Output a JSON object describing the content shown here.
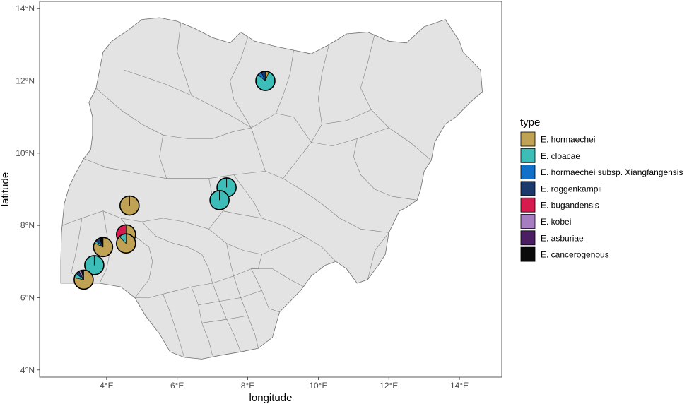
{
  "chart_data": {
    "type": "map",
    "xlabel": "longitude",
    "ylabel": "latitude",
    "xlim": [
      2.1,
      15.2
    ],
    "ylim": [
      3.8,
      14.2
    ],
    "x_ticks": [
      4,
      6,
      8,
      10,
      12,
      14
    ],
    "x_tick_labels": [
      "4°E",
      "6°E",
      "8°E",
      "10°E",
      "12°E",
      "14°E"
    ],
    "y_ticks": [
      4,
      6,
      8,
      10,
      12,
      14
    ],
    "y_tick_labels": [
      "4°N",
      "6°N",
      "8°N",
      "10°N",
      "12°N",
      "14°N"
    ],
    "legend": {
      "title": "type",
      "position": "right",
      "entries": [
        {
          "label": "E. hormaechei",
          "color": "#bfa253"
        },
        {
          "label": "E. cloacae",
          "color": "#3dbdb8"
        },
        {
          "label": "E. hormaechei subsp. Xiangfangensis",
          "color": "#1170c8"
        },
        {
          "label": "E. roggenkampii",
          "color": "#1b3a6b"
        },
        {
          "label": "E. bugandensis",
          "color": "#d81b4f"
        },
        {
          "label": "E. kobei",
          "color": "#a77dc2"
        },
        {
          "label": "E. asburiae",
          "color": "#4b1d63"
        },
        {
          "label": "E. cancerogenous",
          "color": "#0a0a0a"
        }
      ]
    },
    "pies": [
      {
        "lon": 8.5,
        "lat": 12.0,
        "shares": [
          0.06,
          0.8,
          0.07,
          0.07,
          0,
          0,
          0,
          0
        ]
      },
      {
        "lon": 7.4,
        "lat": 9.05,
        "shares": [
          0,
          1.0,
          0,
          0,
          0,
          0,
          0,
          0
        ]
      },
      {
        "lon": 7.2,
        "lat": 8.7,
        "shares": [
          0,
          1.0,
          0,
          0,
          0,
          0,
          0,
          0
        ]
      },
      {
        "lon": 4.65,
        "lat": 8.55,
        "shares": [
          1.0,
          0,
          0,
          0,
          0,
          0,
          0,
          0
        ]
      },
      {
        "lon": 4.55,
        "lat": 7.75,
        "shares": [
          0.5,
          0.12,
          0,
          0,
          0.38,
          0,
          0,
          0
        ]
      },
      {
        "lon": 4.55,
        "lat": 7.5,
        "shares": [
          0.88,
          0.12,
          0,
          0,
          0,
          0,
          0,
          0
        ]
      },
      {
        "lon": 3.9,
        "lat": 7.4,
        "shares": [
          0.82,
          0.04,
          0,
          0.08,
          0,
          0,
          0,
          0.06
        ]
      },
      {
        "lon": 3.65,
        "lat": 6.9,
        "shares": [
          0,
          1.0,
          0,
          0,
          0,
          0,
          0,
          0
        ]
      },
      {
        "lon": 3.35,
        "lat": 6.5,
        "shares": [
          0.78,
          0.08,
          0,
          0.06,
          0,
          0.04,
          0,
          0.04
        ]
      }
    ],
    "country_outline": [
      [
        2.7,
        6.4
      ],
      [
        2.7,
        7.0
      ],
      [
        2.72,
        7.8
      ],
      [
        2.8,
        8.6
      ],
      [
        2.95,
        9.1
      ],
      [
        3.1,
        9.4
      ],
      [
        3.35,
        9.85
      ],
      [
        3.55,
        10.1
      ],
      [
        3.6,
        10.5
      ],
      [
        3.6,
        11.0
      ],
      [
        3.5,
        11.4
      ],
      [
        3.7,
        11.8
      ],
      [
        3.8,
        12.3
      ],
      [
        3.9,
        12.8
      ],
      [
        4.15,
        13.1
      ],
      [
        4.6,
        13.4
      ],
      [
        5.0,
        13.7
      ],
      [
        5.5,
        13.75
      ],
      [
        6.0,
        13.65
      ],
      [
        6.5,
        13.45
      ],
      [
        7.0,
        13.2
      ],
      [
        7.5,
        13.05
      ],
      [
        7.8,
        13.35
      ],
      [
        8.2,
        13.1
      ],
      [
        8.8,
        12.95
      ],
      [
        9.3,
        12.85
      ],
      [
        9.8,
        12.75
      ],
      [
        10.3,
        13.0
      ],
      [
        10.8,
        13.3
      ],
      [
        11.4,
        13.35
      ],
      [
        12.0,
        13.1
      ],
      [
        12.5,
        13.05
      ],
      [
        13.0,
        13.5
      ],
      [
        13.6,
        13.7
      ],
      [
        14.0,
        13.1
      ],
      [
        14.1,
        12.8
      ],
      [
        14.6,
        12.3
      ],
      [
        14.65,
        11.7
      ],
      [
        14.3,
        11.4
      ],
      [
        13.9,
        11.0
      ],
      [
        13.6,
        10.8
      ],
      [
        13.3,
        10.3
      ],
      [
        13.2,
        9.8
      ],
      [
        13.0,
        9.5
      ],
      [
        12.9,
        9.0
      ],
      [
        12.8,
        8.7
      ],
      [
        12.5,
        8.5
      ],
      [
        12.3,
        8.4
      ],
      [
        12.0,
        7.8
      ],
      [
        11.9,
        7.2
      ],
      [
        11.7,
        6.9
      ],
      [
        11.4,
        6.5
      ],
      [
        11.1,
        6.4
      ],
      [
        10.8,
        6.8
      ],
      [
        10.5,
        7.0
      ],
      [
        10.2,
        6.9
      ],
      [
        9.8,
        6.6
      ],
      [
        9.5,
        6.2
      ],
      [
        9.2,
        5.9
      ],
      [
        8.9,
        5.6
      ],
      [
        8.7,
        4.9
      ],
      [
        8.3,
        4.6
      ],
      [
        7.8,
        4.5
      ],
      [
        7.2,
        4.4
      ],
      [
        6.7,
        4.3
      ],
      [
        6.2,
        4.35
      ],
      [
        5.8,
        4.5
      ],
      [
        5.5,
        5.0
      ],
      [
        5.1,
        5.5
      ],
      [
        4.8,
        6.0
      ],
      [
        4.4,
        6.3
      ],
      [
        3.8,
        6.4
      ],
      [
        3.3,
        6.4
      ],
      [
        2.7,
        6.4
      ]
    ],
    "internal_borders": [
      [
        [
          6.1,
          13.6
        ],
        [
          6.0,
          12.8
        ],
        [
          6.2,
          12.2
        ],
        [
          6.4,
          11.6
        ]
      ],
      [
        [
          4.5,
          12.3
        ],
        [
          5.1,
          12.1
        ],
        [
          5.7,
          11.9
        ],
        [
          6.4,
          11.6
        ],
        [
          7.0,
          11.3
        ],
        [
          7.6,
          11.0
        ],
        [
          8.1,
          10.7
        ]
      ],
      [
        [
          3.7,
          11.8
        ],
        [
          4.4,
          11.2
        ],
        [
          5.0,
          10.8
        ],
        [
          5.6,
          10.5
        ],
        [
          6.3,
          10.4
        ],
        [
          7.0,
          10.4
        ],
        [
          7.6,
          10.6
        ],
        [
          8.1,
          10.7
        ]
      ],
      [
        [
          8.0,
          13.2
        ],
        [
          7.8,
          12.6
        ],
        [
          7.5,
          12.0
        ],
        [
          7.6,
          11.5
        ],
        [
          8.1,
          10.7
        ]
      ],
      [
        [
          9.3,
          12.85
        ],
        [
          9.2,
          12.2
        ],
        [
          9.0,
          11.6
        ],
        [
          8.8,
          11.1
        ],
        [
          8.1,
          10.7
        ]
      ],
      [
        [
          10.3,
          13.0
        ],
        [
          10.1,
          12.2
        ],
        [
          10.0,
          11.5
        ],
        [
          10.1,
          10.8
        ],
        [
          9.8,
          10.3
        ],
        [
          9.4,
          9.8
        ],
        [
          9.0,
          9.3
        ]
      ],
      [
        [
          11.6,
          13.3
        ],
        [
          11.4,
          12.5
        ],
        [
          11.2,
          11.8
        ],
        [
          11.5,
          11.2
        ],
        [
          12.0,
          10.7
        ],
        [
          12.6,
          10.3
        ],
        [
          13.2,
          9.8
        ]
      ],
      [
        [
          10.1,
          10.8
        ],
        [
          10.8,
          10.9
        ],
        [
          11.5,
          11.2
        ]
      ],
      [
        [
          11.1,
          10.4
        ],
        [
          11.0,
          9.9
        ],
        [
          11.2,
          9.4
        ],
        [
          11.6,
          9.0
        ],
        [
          12.1,
          8.8
        ],
        [
          12.8,
          8.7
        ]
      ],
      [
        [
          9.8,
          10.3
        ],
        [
          10.4,
          10.2
        ],
        [
          11.1,
          10.4
        ],
        [
          12.0,
          10.7
        ]
      ],
      [
        [
          8.1,
          10.7
        ],
        [
          8.3,
          10.1
        ],
        [
          8.5,
          9.5
        ],
        [
          9.0,
          9.3
        ],
        [
          9.5,
          9.0
        ],
        [
          10.1,
          8.6
        ],
        [
          10.6,
          8.2
        ],
        [
          11.2,
          7.9
        ],
        [
          12.0,
          7.8
        ]
      ],
      [
        [
          3.35,
          9.85
        ],
        [
          4.0,
          9.6
        ],
        [
          4.6,
          9.5
        ],
        [
          5.1,
          9.4
        ],
        [
          5.7,
          9.3
        ],
        [
          6.3,
          9.3
        ],
        [
          6.9,
          9.3
        ],
        [
          7.6,
          9.4
        ],
        [
          8.5,
          9.5
        ]
      ],
      [
        [
          5.6,
          10.5
        ],
        [
          5.5,
          9.9
        ],
        [
          5.7,
          9.3
        ]
      ],
      [
        [
          6.9,
          9.3
        ],
        [
          7.0,
          8.8
        ],
        [
          7.3,
          8.4
        ],
        [
          7.8,
          8.3
        ],
        [
          8.4,
          8.2
        ],
        [
          9.0,
          8.0
        ],
        [
          9.6,
          7.7
        ],
        [
          10.1,
          7.4
        ],
        [
          10.5,
          7.0
        ]
      ],
      [
        [
          7.6,
          9.4
        ],
        [
          7.9,
          9.0
        ],
        [
          8.2,
          8.6
        ],
        [
          8.4,
          8.2
        ]
      ],
      [
        [
          2.75,
          8.0
        ],
        [
          3.3,
          8.2
        ],
        [
          3.9,
          8.4
        ],
        [
          4.4,
          8.2
        ],
        [
          5.0,
          8.1
        ],
        [
          5.6,
          8.2
        ],
        [
          6.2,
          8.1
        ],
        [
          6.9,
          7.9
        ],
        [
          7.3,
          8.4
        ]
      ],
      [
        [
          3.3,
          8.2
        ],
        [
          3.2,
          7.6
        ],
        [
          3.1,
          7.1
        ],
        [
          3.0,
          6.7
        ],
        [
          3.3,
          6.4
        ]
      ],
      [
        [
          3.9,
          8.4
        ],
        [
          4.0,
          7.8
        ],
        [
          4.1,
          7.3
        ],
        [
          4.0,
          6.8
        ],
        [
          3.8,
          6.4
        ]
      ],
      [
        [
          4.4,
          8.2
        ],
        [
          4.8,
          7.7
        ],
        [
          5.2,
          7.4
        ],
        [
          5.3,
          7.0
        ],
        [
          5.2,
          6.5
        ],
        [
          4.8,
          6.0
        ]
      ],
      [
        [
          5.0,
          8.1
        ],
        [
          5.4,
          7.7
        ],
        [
          5.9,
          7.5
        ],
        [
          6.3,
          7.4
        ],
        [
          6.7,
          7.2
        ],
        [
          6.9,
          6.8
        ],
        [
          7.0,
          6.4
        ]
      ],
      [
        [
          4.8,
          6.0
        ],
        [
          5.2,
          6.0
        ],
        [
          5.6,
          6.1
        ],
        [
          6.0,
          6.2
        ],
        [
          6.4,
          6.3
        ],
        [
          7.0,
          6.4
        ],
        [
          7.6,
          6.6
        ],
        [
          8.1,
          6.8
        ],
        [
          8.7,
          6.8
        ],
        [
          9.2,
          6.5
        ],
        [
          9.6,
          6.3
        ]
      ],
      [
        [
          6.9,
          7.9
        ],
        [
          7.4,
          7.5
        ],
        [
          7.9,
          7.3
        ],
        [
          8.4,
          7.2
        ],
        [
          8.9,
          7.4
        ],
        [
          9.6,
          7.7
        ]
      ],
      [
        [
          7.4,
          7.5
        ],
        [
          7.5,
          7.0
        ],
        [
          7.6,
          6.6
        ]
      ],
      [
        [
          8.4,
          7.2
        ],
        [
          8.3,
          6.8
        ],
        [
          8.1,
          6.8
        ]
      ],
      [
        [
          5.6,
          6.1
        ],
        [
          5.8,
          5.6
        ],
        [
          6.0,
          5.0
        ],
        [
          6.2,
          4.35
        ]
      ],
      [
        [
          6.4,
          6.3
        ],
        [
          6.6,
          5.8
        ],
        [
          6.7,
          5.3
        ],
        [
          6.9,
          4.8
        ],
        [
          7.0,
          4.4
        ]
      ],
      [
        [
          7.0,
          6.4
        ],
        [
          7.2,
          5.9
        ],
        [
          7.4,
          5.4
        ],
        [
          7.6,
          5.0
        ],
        [
          7.8,
          4.5
        ]
      ],
      [
        [
          7.6,
          6.6
        ],
        [
          7.8,
          6.0
        ],
        [
          8.0,
          5.5
        ],
        [
          8.2,
          5.0
        ],
        [
          8.3,
          4.6
        ]
      ],
      [
        [
          8.1,
          6.8
        ],
        [
          8.4,
          6.2
        ],
        [
          8.6,
          5.7
        ],
        [
          8.9,
          5.6
        ]
      ],
      [
        [
          6.6,
          5.8
        ],
        [
          7.2,
          5.9
        ],
        [
          7.8,
          6.0
        ],
        [
          8.4,
          6.2
        ]
      ],
      [
        [
          6.7,
          5.3
        ],
        [
          7.4,
          5.4
        ],
        [
          8.0,
          5.5
        ]
      ],
      [
        [
          8.8,
          11.1
        ],
        [
          9.3,
          11.0
        ],
        [
          9.8,
          10.3
        ]
      ],
      [
        [
          12.0,
          7.8
        ],
        [
          11.6,
          7.3
        ],
        [
          11.4,
          6.5
        ]
      ]
    ]
  }
}
